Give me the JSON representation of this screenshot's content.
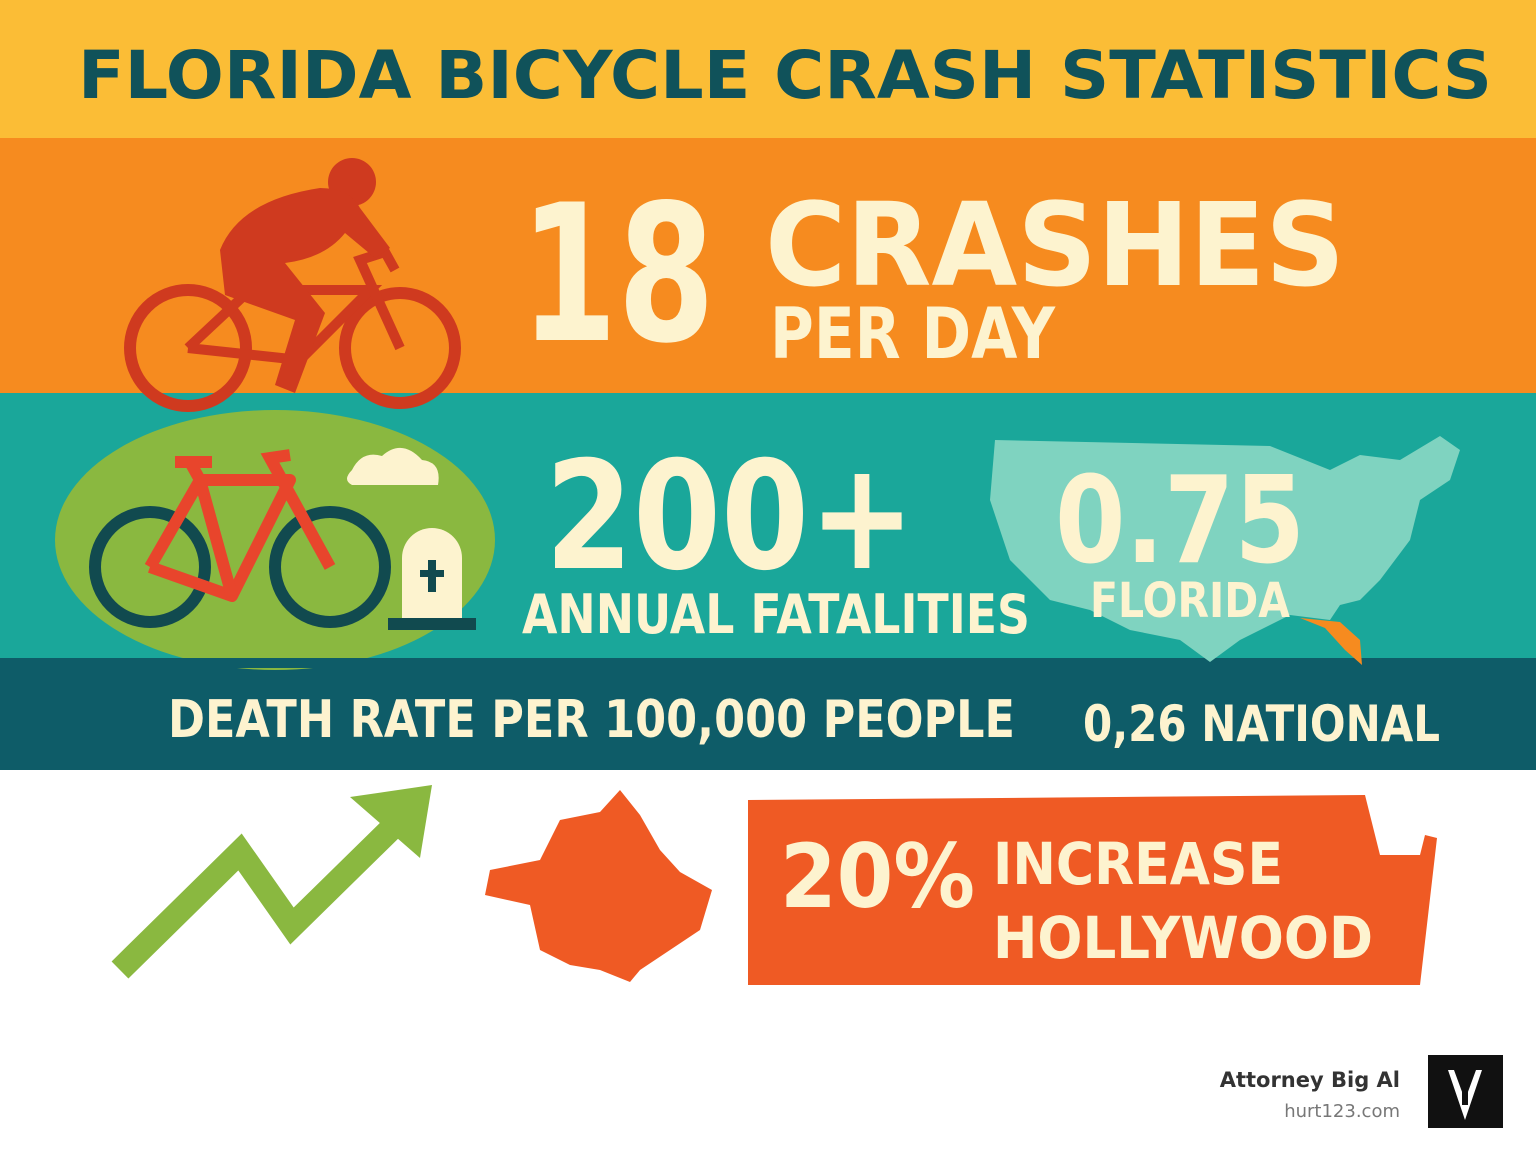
{
  "header": {
    "title": "FLORIDA BICYCLE CRASH STATISTICS"
  },
  "crashes": {
    "number": "18",
    "label": "CRASHES",
    "sublabel": "PER DAY"
  },
  "fatalities": {
    "number": "200+",
    "label": "ANNUAL FATALITIES"
  },
  "florida_rate": {
    "number": "0.75",
    "label": "FLORIDA"
  },
  "death_rate": {
    "label": "DEATH RATE PER 100,000 PEOPLE",
    "national": "0,26 NATIONAL"
  },
  "hollywood": {
    "number": "20%",
    "line1": "INCREASE",
    "line2": "HOLLYWOOD"
  },
  "footer": {
    "brand": "Attorney Big Al",
    "url": "hurt123.com"
  }
}
